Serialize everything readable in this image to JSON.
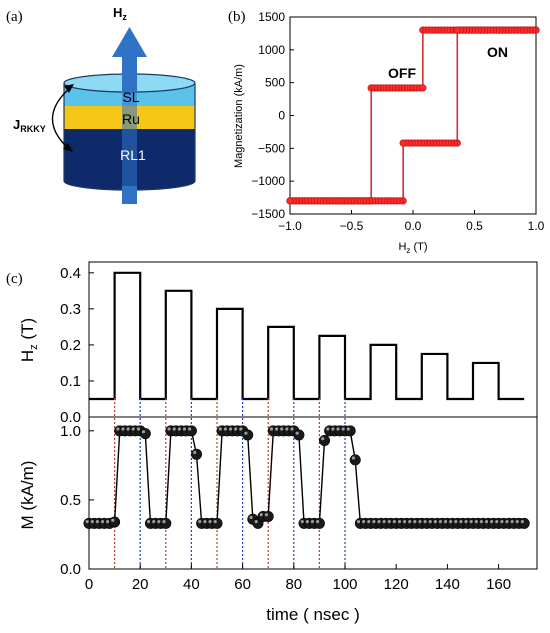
{
  "schematic": {
    "panel_label": "(a)",
    "field_label": "H",
    "field_sub": "z",
    "jrkky_main": "J",
    "jrkky_sub": "RKKY",
    "layers": [
      {
        "name": "SL",
        "color": "#5BC2EA"
      },
      {
        "name": "Ru",
        "color": "#F5C518"
      },
      {
        "name": "RL1",
        "color": "#0F2A6B"
      }
    ],
    "arrow_color": "#2F73C6"
  },
  "chart_data": [
    {
      "type": "line",
      "panel_label": "(b)",
      "xlabel": "H",
      "xlabel_sub": "z",
      "xlabel_unit": " (T)",
      "ylabel": "Magnetization (kA/m)",
      "xlim": [
        -1.0,
        1.0
      ],
      "ylim": [
        -1500,
        1500
      ],
      "xticks": [
        -1.0,
        -0.5,
        0.0,
        0.5,
        1.0
      ],
      "xtick_labels": [
        "−1.0",
        "−0.5",
        "0.0",
        "0.5",
        "1.0"
      ],
      "yticks": [
        -1500,
        -1000,
        -500,
        0,
        500,
        1000,
        1500
      ],
      "ytick_labels": [
        "−1500",
        "−1000",
        "−500",
        "0",
        "500",
        "1000",
        "1500"
      ],
      "annotations": [
        "OFF",
        "ON"
      ],
      "series": [
        {
          "color": "#D93030",
          "x": [
            -1.0,
            -0.34,
            -0.34,
            0.08,
            0.08,
            1.0
          ],
          "y": [
            -1300,
            -1300,
            420,
            420,
            1300,
            1300
          ]
        },
        {
          "color": "#D93030",
          "x": [
            1.0,
            0.36,
            0.36,
            -0.08,
            -0.08,
            -1.0
          ],
          "y": [
            1300,
            1300,
            -420,
            -420,
            -1300,
            -1300
          ]
        }
      ],
      "marker_color": "#FF2A2A"
    },
    {
      "type": "line",
      "panel_label": "(c)",
      "ylabel": "H",
      "ylabel_sub": "z",
      "ylabel_unit": " (T)",
      "xlim": [
        0,
        175
      ],
      "ylim": [
        0,
        0.43
      ],
      "yticks": [
        0.0,
        0.1,
        0.2,
        0.3,
        0.4
      ],
      "ytick_labels": [
        "0.0",
        "0.1",
        "0.2",
        "0.3",
        "0.4"
      ],
      "series": [
        {
          "color": "#000000",
          "x": [
            0,
            10,
            10,
            20,
            20,
            30,
            30,
            40,
            40,
            50,
            50,
            60,
            60,
            70,
            70,
            80,
            80,
            90,
            90,
            100,
            100,
            110,
            110,
            120,
            120,
            130,
            130,
            140,
            140,
            150,
            150,
            160,
            160,
            170
          ],
          "y": [
            0.05,
            0.05,
            0.4,
            0.4,
            0.05,
            0.05,
            0.35,
            0.35,
            0.05,
            0.05,
            0.3,
            0.3,
            0.05,
            0.05,
            0.25,
            0.25,
            0.05,
            0.05,
            0.225,
            0.225,
            0.05,
            0.05,
            0.2,
            0.2,
            0.05,
            0.05,
            0.175,
            0.175,
            0.05,
            0.05,
            0.15,
            0.15,
            0.05,
            0.05
          ]
        }
      ]
    },
    {
      "type": "line",
      "ylabel": "M (kA/m)",
      "xlabel": "time ( nsec )",
      "xlim": [
        0,
        175
      ],
      "ylim": [
        0.0,
        1.1
      ],
      "xticks": [
        0,
        20,
        40,
        60,
        80,
        100,
        120,
        140,
        160
      ],
      "xtick_labels": [
        "0",
        "20",
        "40",
        "60",
        "80",
        "100",
        "120",
        "140",
        "160"
      ],
      "yticks": [
        0.0,
        0.5,
        1.0
      ],
      "ytick_labels": [
        "0.0",
        "0.5",
        "1.0"
      ],
      "series": [
        {
          "color": "#000000",
          "x": [
            0,
            2,
            4,
            6,
            8,
            10,
            12,
            14,
            16,
            18,
            20,
            22,
            24,
            26,
            28,
            30,
            32,
            34,
            36,
            38,
            40,
            42,
            44,
            46,
            48,
            50,
            52,
            54,
            56,
            58,
            60,
            62,
            64,
            66,
            68,
            70,
            72,
            74,
            76,
            78,
            80,
            82,
            84,
            86,
            88,
            90,
            92,
            94,
            96,
            98,
            100,
            102,
            104,
            106,
            108,
            110,
            112,
            114,
            116,
            118,
            120,
            122,
            124,
            126,
            128,
            130,
            132,
            134,
            136,
            138,
            140,
            142,
            144,
            146,
            148,
            150,
            152,
            154,
            156,
            158,
            160,
            162,
            164,
            166,
            168,
            170
          ],
          "y": [
            0.33,
            0.33,
            0.33,
            0.33,
            0.33,
            0.34,
            1.0,
            1.0,
            1.0,
            1.0,
            1.0,
            0.98,
            0.33,
            0.33,
            0.33,
            0.33,
            1.0,
            1.0,
            1.0,
            1.0,
            1.0,
            0.83,
            0.33,
            0.33,
            0.33,
            0.33,
            1.0,
            1.0,
            1.0,
            1.0,
            1.0,
            0.97,
            0.36,
            0.33,
            0.38,
            0.38,
            1.0,
            1.0,
            1.0,
            1.0,
            1.0,
            0.97,
            0.33,
            0.33,
            0.33,
            0.33,
            0.93,
            1.0,
            1.0,
            1.0,
            1.0,
            1.0,
            0.79,
            0.33,
            0.33,
            0.33,
            0.33,
            0.33,
            0.33,
            0.33,
            0.33,
            0.33,
            0.33,
            0.33,
            0.33,
            0.33,
            0.33,
            0.33,
            0.33,
            0.33,
            0.33,
            0.33,
            0.33,
            0.33,
            0.33,
            0.33,
            0.33,
            0.33,
            0.33,
            0.33,
            0.33,
            0.33,
            0.33,
            0.33,
            0.33,
            0.33
          ]
        }
      ],
      "pulse_on_lines_x": [
        10,
        30,
        50,
        70,
        90
      ],
      "pulse_off_lines_x": [
        20,
        40,
        60,
        80,
        100
      ],
      "pulse_on_color": "#C0392B",
      "pulse_off_color": "#1F3FBF"
    }
  ]
}
